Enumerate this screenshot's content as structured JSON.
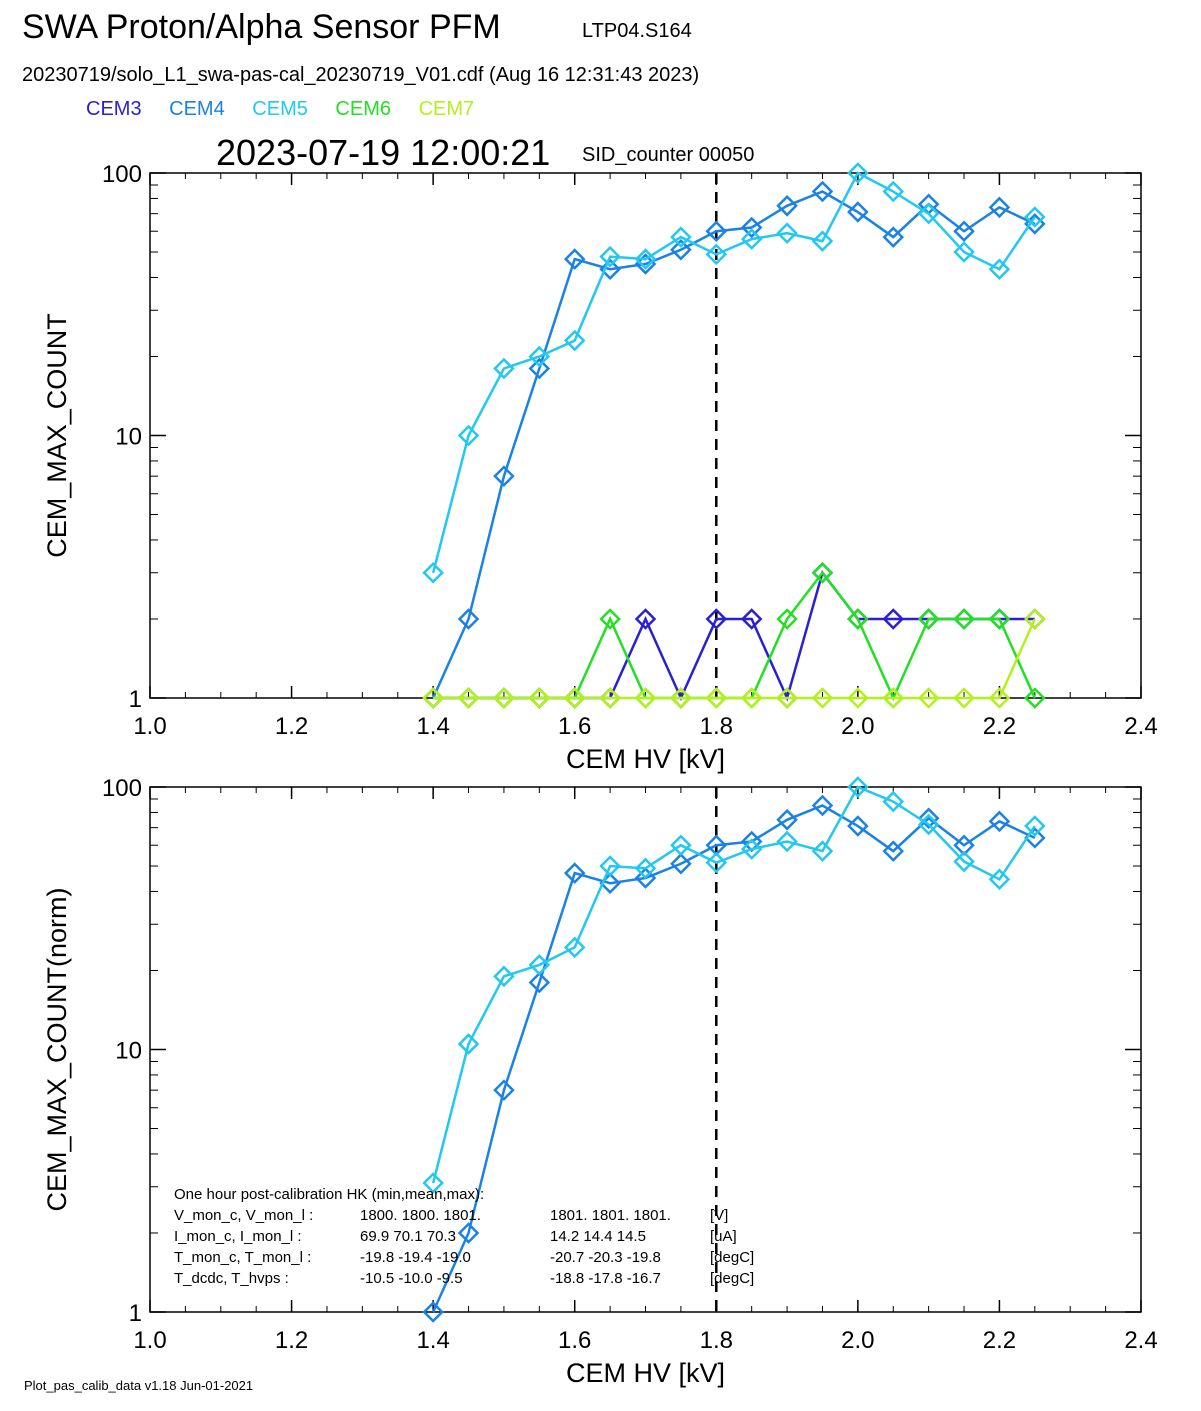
{
  "header": {
    "title": "SWA Proton/Alpha Sensor PFM",
    "subtitle": "LTP04.S164",
    "file_line": "20230719/solo_L1_swa-pas-cal_20230719_V01.cdf  (Aug 16 12:31:43 2023)",
    "timestamp": "2023-07-19 12:00:21",
    "sid_counter": "SID_counter 00050"
  },
  "legend": [
    {
      "label": "CEM3",
      "color": "#2a1fd6"
    },
    {
      "label": "CEM4",
      "color": "#1a82e6"
    },
    {
      "label": "CEM5",
      "color": "#22c8f0"
    },
    {
      "label": "CEM6",
      "color": "#22e022"
    },
    {
      "label": "CEM7",
      "color": "#b4f01c"
    }
  ],
  "footer": "Plot_pas_calib_data v1.18 Jun-01-2021",
  "chart_data": [
    {
      "type": "line",
      "xlabel": "CEM HV [kV]",
      "ylabel": "CEM_MAX_COUNT",
      "xlim": [
        1.0,
        2.4
      ],
      "ylim": [
        1,
        100
      ],
      "yscale": "log",
      "x_ticks": [
        "1.0",
        "1.2",
        "1.4",
        "1.6",
        "1.8",
        "2.0",
        "2.2",
        "2.4"
      ],
      "y_ticks": [
        "1",
        "10",
        "100"
      ],
      "marker": "diamond",
      "vline": 1.8,
      "x": [
        1.4,
        1.45,
        1.5,
        1.55,
        1.6,
        1.65,
        1.7,
        1.75,
        1.8,
        1.85,
        1.9,
        1.95,
        2.0,
        2.05,
        2.1,
        2.15,
        2.2,
        2.25
      ],
      "series": [
        {
          "legend": "CEM3",
          "color": "#2a1fd6",
          "values": [
            1,
            1,
            1,
            1,
            1,
            1,
            2,
            1,
            2,
            2,
            1,
            3,
            2,
            2,
            2,
            2,
            2,
            2
          ]
        },
        {
          "legend": "CEM4",
          "color": "#1a82e6",
          "values": [
            1,
            2,
            7,
            18,
            47,
            43,
            45,
            51,
            60,
            62,
            75,
            85,
            71,
            57,
            76,
            60,
            74,
            64
          ]
        },
        {
          "legend": "CEM5",
          "color": "#22c8f0",
          "values": [
            3,
            10,
            18,
            20,
            23,
            48,
            47,
            57,
            49,
            56,
            59,
            55,
            100,
            85,
            70,
            50,
            43,
            68
          ]
        },
        {
          "legend": "CEM6",
          "color": "#22e022",
          "values": [
            1,
            1,
            1,
            1,
            1,
            2,
            1,
            1,
            1,
            1,
            2,
            3,
            2,
            1,
            2,
            2,
            2,
            1
          ]
        },
        {
          "legend": "CEM7",
          "color": "#b4f01c",
          "values": [
            1,
            1,
            1,
            1,
            1,
            1,
            1,
            1,
            1,
            1,
            1,
            1,
            1,
            1,
            1,
            1,
            1,
            2
          ]
        }
      ]
    },
    {
      "type": "line",
      "xlabel": "CEM HV [kV]",
      "ylabel": "CEM_MAX_COUNT(norm)",
      "xlim": [
        1.0,
        2.4
      ],
      "ylim": [
        1,
        100
      ],
      "yscale": "log",
      "x_ticks": [
        "1.0",
        "1.2",
        "1.4",
        "1.6",
        "1.8",
        "2.0",
        "2.2",
        "2.4"
      ],
      "y_ticks": [
        "1",
        "10",
        "100"
      ],
      "marker": "diamond",
      "vline": 1.8,
      "x": [
        1.4,
        1.45,
        1.5,
        1.55,
        1.6,
        1.65,
        1.7,
        1.75,
        1.8,
        1.85,
        1.9,
        1.95,
        2.0,
        2.05,
        2.1,
        2.15,
        2.2,
        2.25
      ],
      "series": [
        {
          "legend": "CEM4",
          "color": "#1a82e6",
          "values": [
            1,
            2,
            7,
            18,
            47,
            43,
            45,
            51,
            60,
            62,
            75,
            85,
            71,
            57,
            76,
            60,
            74,
            64
          ]
        },
        {
          "legend": "CEM5",
          "color": "#22c8f0",
          "values": [
            3.1,
            10.5,
            19,
            21,
            24.5,
            50,
            49,
            60,
            51.5,
            58,
            62,
            57,
            100,
            88,
            72,
            52,
            44.5,
            71
          ]
        }
      ],
      "annotation": {
        "heading": "One hour post-calibration HK (min,mean,max):",
        "rows": [
          {
            "label": "V_mon_c, V_mon_l :",
            "c": "1800.  1800.  1801.",
            "l": "1801.  1801.  1801.",
            "unit": "[V]"
          },
          {
            "label": "I_mon_c,  I_mon_l :",
            "c": "69.9   70.1   70.3",
            "l": "14.2   14.4   14.5",
            "unit": "[uA]"
          },
          {
            "label": "T_mon_c, T_mon_l :",
            "c": "-19.8  -19.4  -19.0",
            "l": "-20.7  -20.3  -19.8",
            "unit": "[degC]"
          },
          {
            "label": "T_dcdc,    T_hvps :",
            "c": "-10.5  -10.0   -9.5",
            "l": "-18.8  -17.8  -16.7",
            "unit": "[degC]"
          }
        ]
      }
    }
  ]
}
